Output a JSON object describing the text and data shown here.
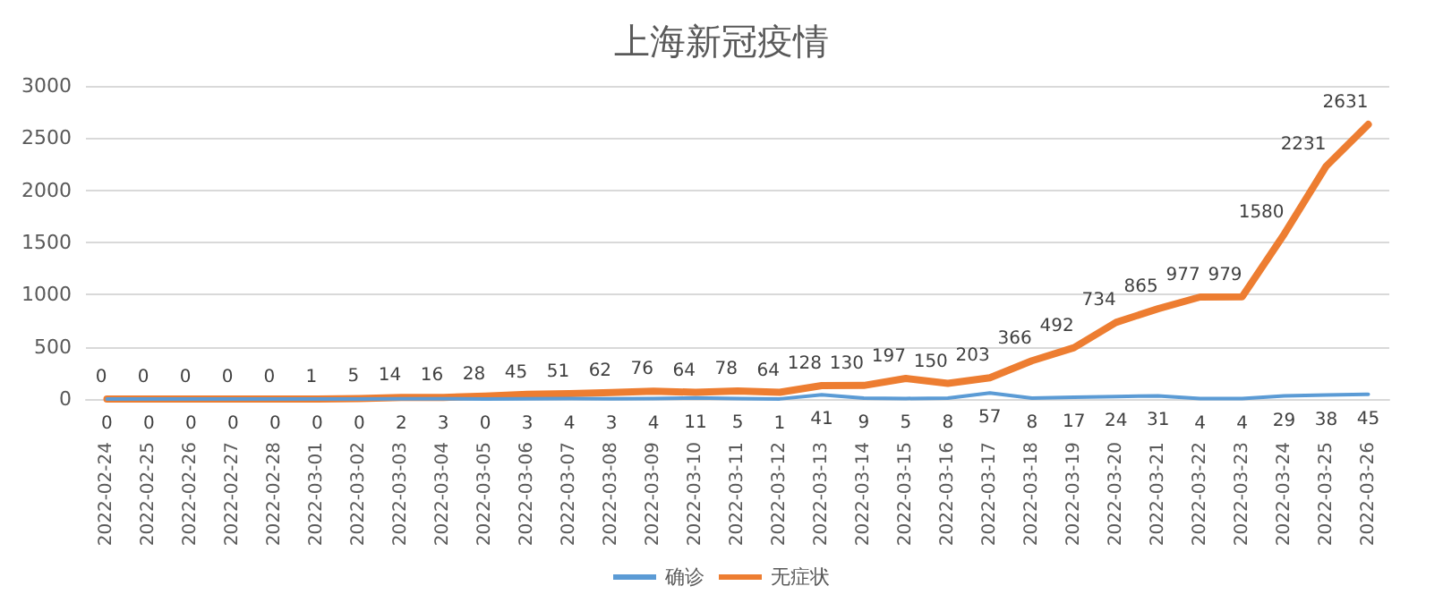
{
  "chart_data": {
    "type": "line",
    "title": "上海新冠疫情",
    "categories": [
      "2022-02-24",
      "2022-02-25",
      "2022-02-26",
      "2022-02-27",
      "2022-02-28",
      "2022-03-01",
      "2022-03-02",
      "2022-03-03",
      "2022-03-04",
      "2022-03-05",
      "2022-03-06",
      "2022-03-07",
      "2022-03-08",
      "2022-03-09",
      "2022-03-10",
      "2022-03-11",
      "2022-03-12",
      "2022-03-13",
      "2022-03-14",
      "2022-03-15",
      "2022-03-16",
      "2022-03-17",
      "2022-03-18",
      "2022-03-19",
      "2022-03-20",
      "2022-03-21",
      "2022-03-22",
      "2022-03-23",
      "2022-03-24",
      "2022-03-25",
      "2022-03-26"
    ],
    "series": [
      {
        "name": "确诊",
        "color": "#5b9bd5",
        "values": [
          0,
          0,
          0,
          0,
          0,
          0,
          0,
          2,
          3,
          0,
          3,
          4,
          3,
          4,
          11,
          5,
          1,
          41,
          9,
          5,
          8,
          57,
          8,
          17,
          24,
          31,
          4,
          4,
          29,
          38,
          45
        ]
      },
      {
        "name": "无症状",
        "color": "#ed7d31",
        "values": [
          0,
          0,
          0,
          0,
          0,
          1,
          5,
          14,
          16,
          28,
          45,
          51,
          62,
          76,
          64,
          78,
          64,
          128,
          130,
          197,
          150,
          203,
          366,
          492,
          734,
          865,
          977,
          979,
          1580,
          2231,
          2631
        ]
      }
    ],
    "ylim": [
      0,
      3000
    ],
    "yticks": [
      0,
      500,
      1000,
      1500,
      2000,
      2500,
      3000
    ],
    "grid": "y",
    "legend": "bottom",
    "data_labels": true,
    "marker": "none",
    "line_style": "solid"
  }
}
